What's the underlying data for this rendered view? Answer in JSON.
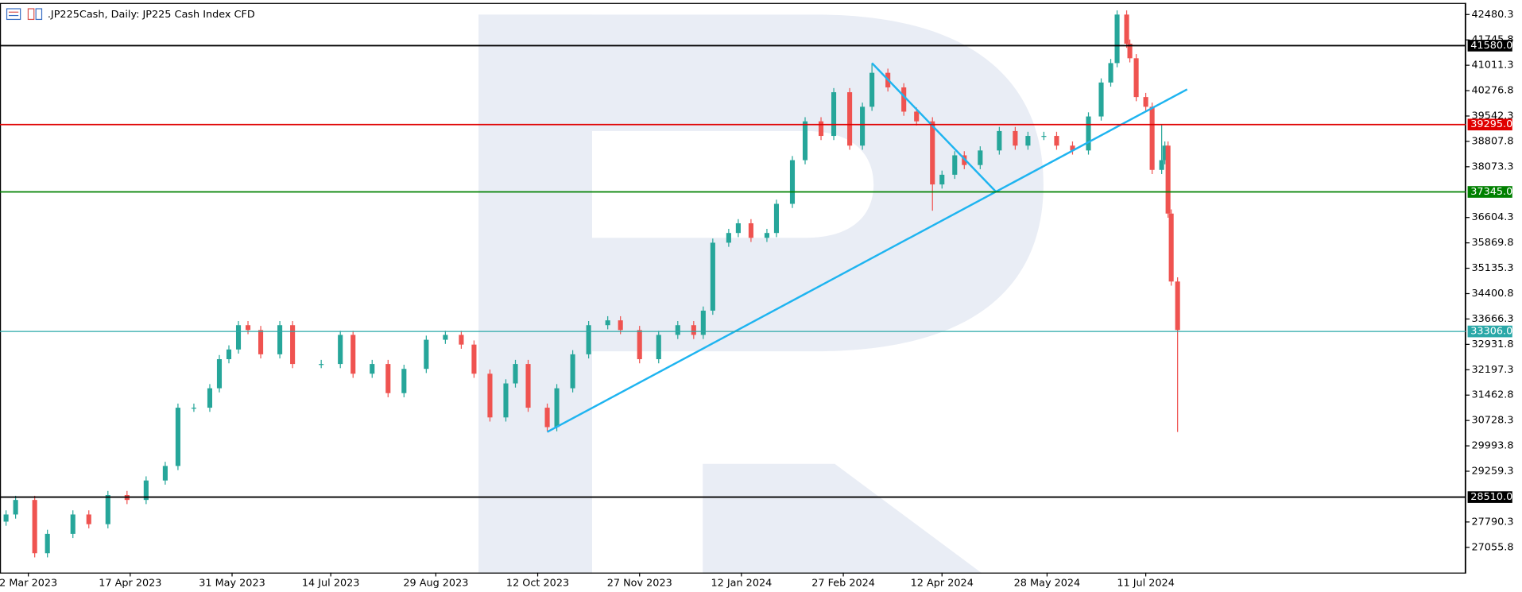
{
  "chart_data": {
    "type": "candlestick",
    "title": ".JP225Cash, Daily:  JP225 Cash Index CFD",
    "x": [
      1,
      4,
      10,
      14,
      22,
      27,
      33,
      39,
      45,
      51,
      55,
      60,
      65,
      68,
      71,
      74,
      77,
      81,
      87,
      91,
      100,
      106,
      110,
      116,
      121,
      126,
      133,
      139,
      144,
      148,
      153,
      158,
      161,
      165,
      171,
      174,
      179,
      184,
      190,
      194,
      200,
      206,
      212,
      217,
      220,
      223,
      228,
      231,
      235,
      240,
      243,
      248,
      252,
      257,
      261,
      266,
      270,
      273,
      278,
      283,
      287,
      292,
      295,
      299,
      302,
      307,
      313,
      318,
      322,
      327,
      331,
      336,
      341,
      345,
      348,
      350,
      353,
      354,
      356,
      359,
      361,
      364,
      365,
      366,
      367,
      369
    ],
    "open": [
      27800,
      28007,
      28428,
      26885,
      27445,
      28007,
      27726,
      28569,
      28428,
      28991,
      29412,
      31098,
      31098,
      31661,
      32503,
      32784,
      33487,
      33346,
      32644,
      33487,
      32363,
      32363,
      33206,
      32082,
      32363,
      31520,
      32222,
      33065,
      33206,
      32925,
      32082,
      30817,
      31801,
      32363,
      31098,
      30536,
      31661,
      32644,
      33487,
      33627,
      33346,
      32503,
      33206,
      33487,
      33206,
      33908,
      35875,
      36156,
      36437,
      36016,
      36156,
      37000,
      38264,
      39388,
      38966,
      40231,
      38685,
      39810,
      40793,
      40371,
      39669,
      39388,
      37561,
      37842,
      38404,
      38123,
      38545,
      39107,
      38685,
      38966,
      38966,
      38685,
      38545,
      39529,
      40512,
      41074,
      42479,
      41636,
      41214,
      40091,
      39810,
      37983,
      38264,
      38685,
      36718,
      34751
    ],
    "high": [
      28127,
      28548,
      28548,
      27565,
      28127,
      28127,
      28689,
      28689,
      29111,
      29532,
      31218,
      31218,
      31781,
      32623,
      32904,
      33607,
      33607,
      33466,
      33607,
      33607,
      32483,
      33326,
      33326,
      32483,
      32483,
      32342,
      33185,
      33326,
      33326,
      33045,
      32202,
      31921,
      32483,
      32483,
      31218,
      31781,
      32764,
      33607,
      33747,
      33747,
      33466,
      33326,
      33607,
      33607,
      34028,
      35995,
      36276,
      36557,
      36557,
      36276,
      37120,
      38384,
      39508,
      39508,
      40351,
      40351,
      39930,
      41074,
      40913,
      40491,
      39789,
      39508,
      37962,
      38524,
      38524,
      38665,
      39227,
      39227,
      39086,
      39086,
      39086,
      38805,
      39649,
      40632,
      41194,
      42599,
      42599,
      41756,
      41334,
      40211,
      39930,
      39300,
      38805,
      38805,
      36838,
      34871
    ],
    "low": [
      27680,
      27887,
      26765,
      26765,
      27325,
      27606,
      27606,
      28308,
      28308,
      28871,
      29292,
      30978,
      30978,
      31541,
      32383,
      32664,
      33226,
      32524,
      32524,
      32243,
      32243,
      32243,
      31962,
      31962,
      31400,
      31400,
      32102,
      32945,
      32805,
      31962,
      30697,
      30697,
      31681,
      30978,
      30416,
      30416,
      31541,
      32524,
      33367,
      33226,
      32383,
      32383,
      33086,
      33086,
      33086,
      33788,
      35755,
      36036,
      35896,
      35896,
      36036,
      36880,
      38144,
      38846,
      38846,
      38565,
      38565,
      39690,
      40251,
      39549,
      39268,
      36800,
      37441,
      37722,
      38003,
      38003,
      38425,
      38565,
      38565,
      38846,
      38565,
      38425,
      38425,
      39409,
      40392,
      40954,
      41516,
      41094,
      39971,
      39690,
      37863,
      37863,
      38144,
      36598,
      34631,
      30396
    ],
    "close": [
      28007,
      28428,
      26885,
      27445,
      28007,
      27726,
      28569,
      28428,
      28991,
      29412,
      31098,
      31098,
      31661,
      32503,
      32784,
      33487,
      33346,
      32644,
      33487,
      32363,
      32363,
      33206,
      32082,
      32363,
      31520,
      32222,
      33065,
      33206,
      32925,
      32082,
      30817,
      31801,
      32363,
      31098,
      30536,
      31661,
      32644,
      33487,
      33627,
      33346,
      32503,
      33206,
      33487,
      33206,
      33908,
      35875,
      36156,
      36437,
      36016,
      36156,
      37000,
      38264,
      39388,
      38966,
      40231,
      38685,
      39810,
      40793,
      40371,
      39669,
      39388,
      37561,
      37842,
      38404,
      38123,
      38545,
      39107,
      38685,
      38966,
      38966,
      38685,
      38545,
      39529,
      40512,
      41074,
      42479,
      41636,
      41214,
      40091,
      39810,
      37983,
      38264,
      38685,
      36718,
      34751,
      33346
    ],
    "up_color": "#26a69a",
    "down_color": "#ef5350",
    "xlim": [
      -0.9,
      459.5
    ],
    "ylim": [
      26325,
      42760
    ],
    "xticks": [
      {
        "value": 8,
        "label": "2 Mar 2023"
      },
      {
        "value": 40,
        "label": "17 Apr 2023"
      },
      {
        "value": 72,
        "label": "31 May 2023"
      },
      {
        "value": 103,
        "label": "14 Jul 2023"
      },
      {
        "value": 136,
        "label": "29 Aug 2023"
      },
      {
        "value": 168,
        "label": "12 Oct 2023"
      },
      {
        "value": 200,
        "label": "27 Nov 2023"
      },
      {
        "value": 232,
        "label": "12 Jan 2024"
      },
      {
        "value": 264,
        "label": "27 Feb 2024"
      },
      {
        "value": 295,
        "label": "12 Apr 2024"
      },
      {
        "value": 328,
        "label": "28 May 2024"
      },
      {
        "value": 359,
        "label": "11 Jul 2024"
      }
    ],
    "yticks": [
      42480.3,
      41745.8,
      41011.3,
      40276.8,
      39542.3,
      38807.8,
      38073.3,
      36604.3,
      35869.8,
      35135.3,
      34400.8,
      33666.3,
      32931.8,
      32197.3,
      31462.8,
      30728.3,
      29993.8,
      29259.3,
      27790.3,
      27055.8
    ],
    "levels": [
      {
        "value": 41580,
        "label": "41580.0",
        "color": "#000000"
      },
      {
        "value": 39295,
        "label": "39295.0",
        "color": "#e00000"
      },
      {
        "value": 37345,
        "label": "37345.0",
        "color": "#008000"
      },
      {
        "value": 33306,
        "label": "33306.0",
        "color": "#2aa8a8"
      },
      {
        "value": 28510,
        "label": "28510.0",
        "color": "#000000"
      }
    ],
    "trendlines": [
      {
        "x": [
          171,
          372
        ],
        "y": [
          30396,
          40315
        ],
        "color": "#1eb4f0"
      },
      {
        "x": [
          273,
          312
        ],
        "y": [
          41074,
          37345
        ],
        "color": "#1eb4f0"
      }
    ]
  }
}
